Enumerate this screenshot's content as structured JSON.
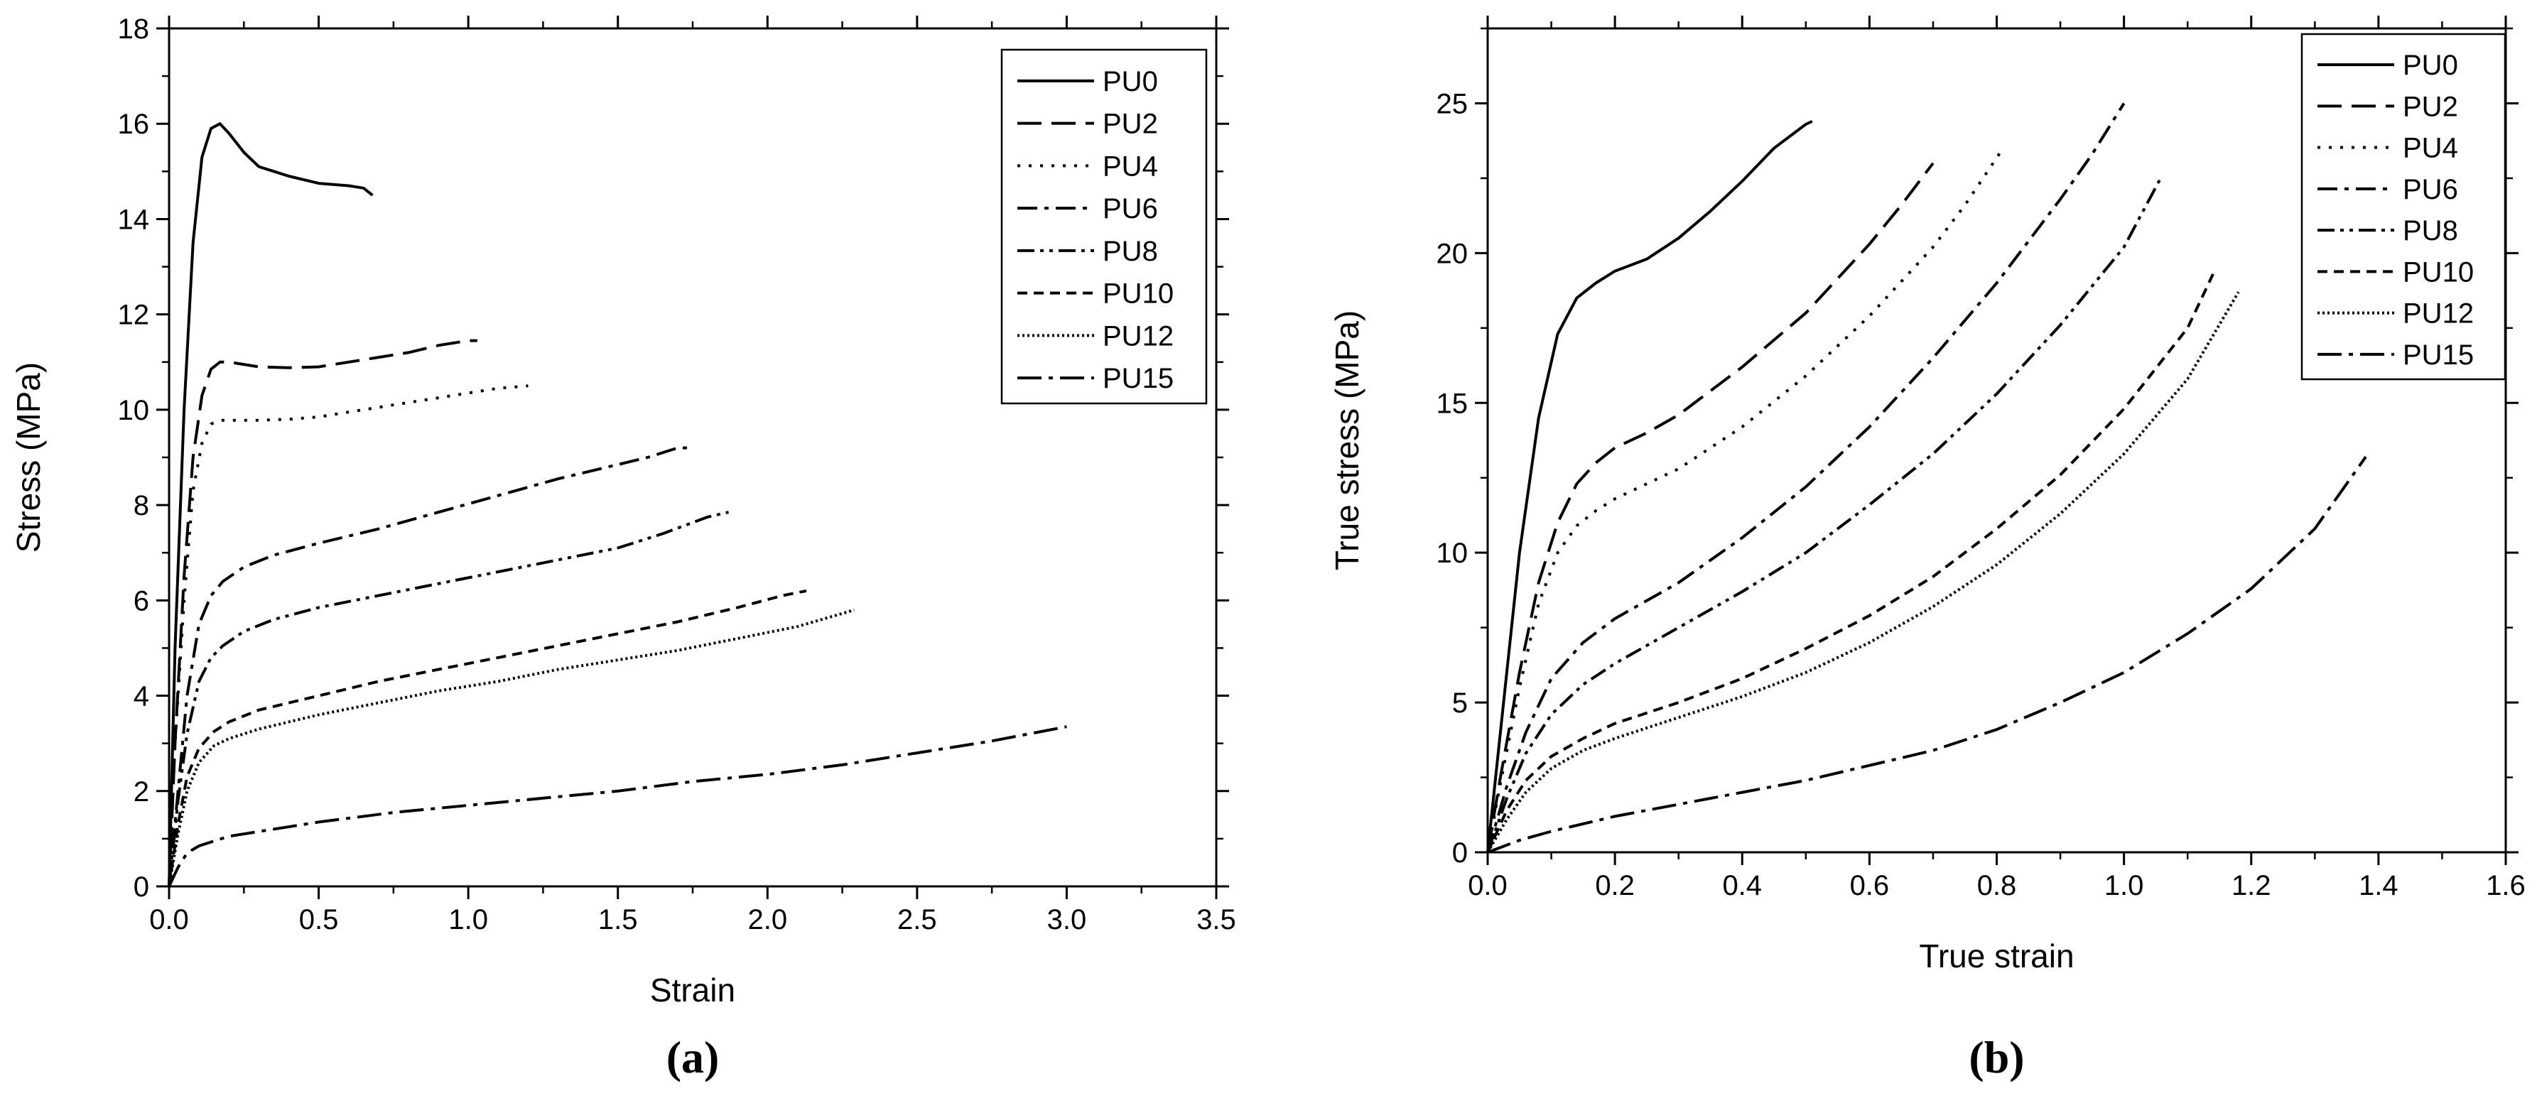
{
  "chart_data": [
    {
      "type": "line",
      "panel_label": "(a)",
      "xlabel": "Strain",
      "ylabel": "Stress (MPa)",
      "xlim": [
        0,
        3.5
      ],
      "ylim": [
        0,
        18
      ],
      "xticks": [
        0.0,
        0.5,
        1.0,
        1.5,
        2.0,
        2.5,
        3.0,
        3.5
      ],
      "xtick_labels": [
        "0.0",
        "0.5",
        "1.0",
        "1.5",
        "2.0",
        "2.5",
        "3.0",
        "3.5"
      ],
      "yticks": [
        0,
        2,
        4,
        6,
        8,
        10,
        12,
        14,
        16,
        18
      ],
      "ytick_labels": [
        "0",
        "2",
        "4",
        "6",
        "8",
        "10",
        "12",
        "14",
        "16",
        "18"
      ],
      "grid": false,
      "legend_position": "top-right",
      "series": [
        {
          "name": "PU0",
          "dash": "solid",
          "x": [
            0,
            0.02,
            0.05,
            0.08,
            0.11,
            0.14,
            0.17,
            0.2,
            0.25,
            0.3,
            0.4,
            0.5,
            0.6,
            0.65,
            0.68
          ],
          "y": [
            0,
            5,
            10,
            13.5,
            15.3,
            15.9,
            16.0,
            15.8,
            15.4,
            15.1,
            14.9,
            14.75,
            14.7,
            14.65,
            14.5
          ]
        },
        {
          "name": "PU2",
          "dash": "longdash",
          "x": [
            0,
            0.02,
            0.05,
            0.08,
            0.11,
            0.14,
            0.17,
            0.2,
            0.25,
            0.3,
            0.4,
            0.5,
            0.6,
            0.7,
            0.8,
            0.9,
            1.0,
            1.03
          ],
          "y": [
            0,
            3,
            6.5,
            9,
            10.3,
            10.85,
            11.0,
            11.0,
            10.95,
            10.9,
            10.88,
            10.9,
            11.0,
            11.1,
            11.2,
            11.35,
            11.45,
            11.45
          ]
        },
        {
          "name": "PU4",
          "dash": "dot",
          "x": [
            0,
            0.02,
            0.05,
            0.08,
            0.11,
            0.14,
            0.17,
            0.2,
            0.3,
            0.4,
            0.5,
            0.6,
            0.7,
            0.8,
            0.9,
            1.0,
            1.1,
            1.2
          ],
          "y": [
            0,
            3,
            6,
            8.3,
            9.3,
            9.7,
            9.78,
            9.78,
            9.78,
            9.8,
            9.85,
            9.95,
            10.05,
            10.15,
            10.25,
            10.35,
            10.45,
            10.5
          ]
        },
        {
          "name": "PU6",
          "dash": "dashdot",
          "x": [
            0,
            0.03,
            0.06,
            0.1,
            0.14,
            0.18,
            0.25,
            0.35,
            0.5,
            0.7,
            0.9,
            1.1,
            1.3,
            1.5,
            1.6,
            1.7,
            1.75
          ],
          "y": [
            0,
            2,
            4,
            5.5,
            6.1,
            6.4,
            6.7,
            6.95,
            7.2,
            7.5,
            7.85,
            8.2,
            8.55,
            8.85,
            9.0,
            9.2,
            9.2
          ]
        },
        {
          "name": "PU8",
          "dash": "dashdotdot",
          "x": [
            0,
            0.03,
            0.06,
            0.1,
            0.14,
            0.18,
            0.25,
            0.35,
            0.5,
            0.7,
            0.9,
            1.1,
            1.3,
            1.5,
            1.65,
            1.8,
            1.87
          ],
          "y": [
            0,
            1.8,
            3.2,
            4.3,
            4.8,
            5.05,
            5.35,
            5.6,
            5.85,
            6.1,
            6.35,
            6.6,
            6.85,
            7.1,
            7.4,
            7.75,
            7.85
          ]
        },
        {
          "name": "PU10",
          "dash": "shortdash",
          "x": [
            0,
            0.03,
            0.06,
            0.1,
            0.15,
            0.2,
            0.3,
            0.5,
            0.7,
            0.9,
            1.1,
            1.3,
            1.5,
            1.7,
            1.9,
            2.05,
            2.13
          ],
          "y": [
            0,
            1.3,
            2.3,
            2.9,
            3.25,
            3.45,
            3.7,
            4.0,
            4.3,
            4.55,
            4.8,
            5.05,
            5.3,
            5.55,
            5.85,
            6.1,
            6.2
          ]
        },
        {
          "name": "PU12",
          "dash": "finedot",
          "x": [
            0,
            0.03,
            0.06,
            0.1,
            0.15,
            0.2,
            0.3,
            0.5,
            0.7,
            0.9,
            1.1,
            1.3,
            1.5,
            1.7,
            1.9,
            2.1,
            2.29
          ],
          "y": [
            0,
            1.1,
            2.0,
            2.6,
            2.95,
            3.1,
            3.3,
            3.6,
            3.85,
            4.1,
            4.3,
            4.55,
            4.75,
            4.95,
            5.2,
            5.45,
            5.8
          ]
        },
        {
          "name": "PU15",
          "dash": "longdashdot",
          "x": [
            0,
            0.03,
            0.06,
            0.1,
            0.15,
            0.2,
            0.3,
            0.5,
            0.75,
            1.0,
            1.25,
            1.5,
            1.75,
            2.0,
            2.25,
            2.5,
            2.75,
            3.0
          ],
          "y": [
            0,
            0.4,
            0.7,
            0.85,
            0.95,
            1.05,
            1.15,
            1.35,
            1.55,
            1.7,
            1.85,
            2.0,
            2.2,
            2.35,
            2.55,
            2.8,
            3.05,
            3.35
          ]
        }
      ]
    },
    {
      "type": "line",
      "panel_label": "(b)",
      "xlabel": "True strain",
      "ylabel": "True stress (MPa)",
      "xlim": [
        0,
        1.6
      ],
      "ylim": [
        0,
        27.5
      ],
      "xticks": [
        0.0,
        0.2,
        0.4,
        0.6,
        0.8,
        1.0,
        1.2,
        1.4,
        1.6
      ],
      "xtick_labels": [
        "0.0",
        "0.2",
        "0.4",
        "0.6",
        "0.8",
        "1.0",
        "1.2",
        "1.4",
        "1.6"
      ],
      "yticks": [
        0,
        5,
        10,
        15,
        20,
        25
      ],
      "ytick_labels": [
        "0",
        "5",
        "10",
        "15",
        "20",
        "25"
      ],
      "grid": false,
      "legend_position": "top-right",
      "series": [
        {
          "name": "PU0",
          "dash": "solid",
          "x": [
            0,
            0.02,
            0.05,
            0.08,
            0.11,
            0.14,
            0.17,
            0.2,
            0.25,
            0.3,
            0.35,
            0.4,
            0.45,
            0.5,
            0.51
          ],
          "y": [
            0,
            4,
            10,
            14.5,
            17.3,
            18.5,
            19.0,
            19.4,
            19.8,
            20.5,
            21.4,
            22.4,
            23.5,
            24.3,
            24.4
          ]
        },
        {
          "name": "PU2",
          "dash": "longdash",
          "x": [
            0,
            0.02,
            0.05,
            0.08,
            0.11,
            0.14,
            0.17,
            0.2,
            0.25,
            0.3,
            0.4,
            0.5,
            0.6,
            0.65,
            0.7
          ],
          "y": [
            0,
            2.5,
            6,
            9,
            11,
            12.3,
            13.0,
            13.5,
            14.0,
            14.6,
            16.2,
            18.0,
            20.3,
            21.6,
            23.0
          ]
        },
        {
          "name": "PU4",
          "dash": "dot",
          "x": [
            0,
            0.02,
            0.05,
            0.08,
            0.11,
            0.14,
            0.17,
            0.2,
            0.3,
            0.4,
            0.5,
            0.6,
            0.7,
            0.75,
            0.81
          ],
          "y": [
            0,
            2.3,
            5.5,
            8.3,
            10.0,
            10.9,
            11.4,
            11.8,
            12.8,
            14.2,
            15.9,
            17.9,
            20.2,
            21.6,
            23.5
          ]
        },
        {
          "name": "PU6",
          "dash": "dashdot",
          "x": [
            0,
            0.03,
            0.06,
            0.1,
            0.15,
            0.2,
            0.3,
            0.4,
            0.5,
            0.6,
            0.7,
            0.8,
            0.9,
            0.95,
            1.0
          ],
          "y": [
            0,
            2.2,
            4.0,
            5.8,
            7.0,
            7.8,
            9.0,
            10.5,
            12.2,
            14.2,
            16.5,
            19.0,
            21.8,
            23.3,
            25.0
          ]
        },
        {
          "name": "PU8",
          "dash": "dashdotdot",
          "x": [
            0,
            0.03,
            0.06,
            0.1,
            0.15,
            0.2,
            0.3,
            0.4,
            0.5,
            0.6,
            0.7,
            0.8,
            0.9,
            1.0,
            1.06
          ],
          "y": [
            0,
            1.8,
            3.3,
            4.6,
            5.6,
            6.3,
            7.5,
            8.7,
            10.0,
            11.6,
            13.3,
            15.3,
            17.6,
            20.2,
            22.6
          ]
        },
        {
          "name": "PU10",
          "dash": "shortdash",
          "x": [
            0,
            0.03,
            0.06,
            0.1,
            0.15,
            0.2,
            0.3,
            0.4,
            0.5,
            0.6,
            0.7,
            0.8,
            0.9,
            1.0,
            1.1,
            1.14
          ],
          "y": [
            0,
            1.4,
            2.4,
            3.2,
            3.8,
            4.3,
            5.0,
            5.8,
            6.8,
            7.9,
            9.2,
            10.8,
            12.6,
            14.8,
            17.5,
            19.3
          ]
        },
        {
          "name": "PU12",
          "dash": "finedot",
          "x": [
            0,
            0.03,
            0.06,
            0.1,
            0.15,
            0.2,
            0.3,
            0.4,
            0.5,
            0.6,
            0.7,
            0.8,
            0.9,
            1.0,
            1.1,
            1.18
          ],
          "y": [
            0,
            1.1,
            2.0,
            2.8,
            3.4,
            3.8,
            4.5,
            5.2,
            6.0,
            7.0,
            8.2,
            9.6,
            11.3,
            13.3,
            15.8,
            18.7
          ]
        },
        {
          "name": "PU15",
          "dash": "longdashdot",
          "x": [
            0,
            0.05,
            0.1,
            0.2,
            0.3,
            0.4,
            0.5,
            0.6,
            0.7,
            0.8,
            0.9,
            1.0,
            1.1,
            1.2,
            1.3,
            1.38
          ],
          "y": [
            0,
            0.4,
            0.7,
            1.2,
            1.6,
            2.0,
            2.4,
            2.9,
            3.4,
            4.1,
            5.0,
            6.0,
            7.3,
            8.8,
            10.8,
            13.2
          ]
        }
      ]
    }
  ]
}
